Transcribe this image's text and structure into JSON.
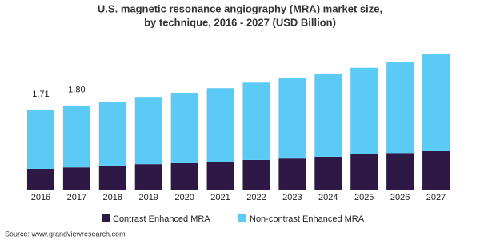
{
  "chart_data": {
    "type": "stacked_bar",
    "title": "U.S. magnetic resonance angiography (MRA) market size,",
    "subtitle": "by technique, 2016 - 2027 (USD Billion)",
    "categories": [
      "2016",
      "2017",
      "2018",
      "2019",
      "2020",
      "2021",
      "2022",
      "2023",
      "2024",
      "2025",
      "2026",
      "2027"
    ],
    "series": [
      {
        "name": "Contrast Enhanced MRA",
        "color": "#2d1846",
        "values": [
          0.45,
          0.48,
          0.52,
          0.55,
          0.57,
          0.6,
          0.64,
          0.67,
          0.71,
          0.76,
          0.79,
          0.83
        ]
      },
      {
        "name": "Non-contrast Enhanced MRA",
        "color": "#5bcbf5",
        "values": [
          1.26,
          1.32,
          1.38,
          1.45,
          1.52,
          1.59,
          1.67,
          1.73,
          1.79,
          1.87,
          1.97,
          2.09
        ]
      }
    ],
    "totals": [
      {
        "value": 1.71,
        "label": "1.71"
      },
      {
        "value": 1.8,
        "label": "1.80"
      }
    ],
    "ylim": [
      0,
      3.1
    ],
    "legend": "bottom",
    "source": "Source: www.grandviewresearch.com"
  }
}
